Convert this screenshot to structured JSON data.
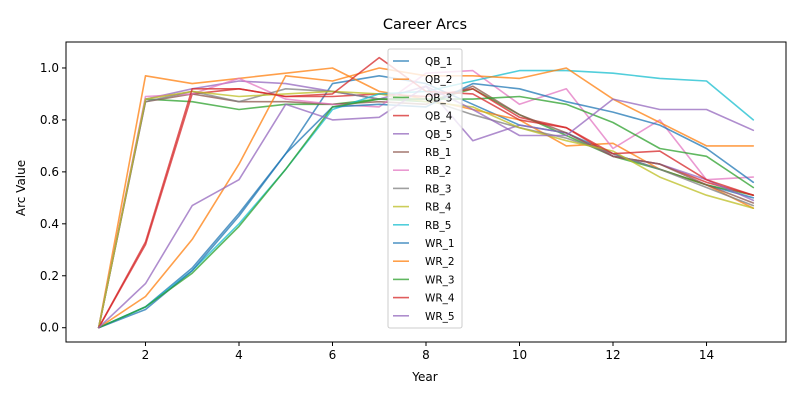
{
  "chart_data": {
    "type": "line",
    "title": "Career Arcs",
    "xlabel": "Year",
    "ylabel": "Arc Value",
    "xlim": [
      0.3,
      15.7
    ],
    "ylim": [
      -0.055,
      1.1
    ],
    "x_ticks": [
      2,
      4,
      6,
      8,
      10,
      12,
      14
    ],
    "y_ticks": [
      0.0,
      0.2,
      0.4,
      0.6,
      0.8,
      1.0
    ],
    "grid": false,
    "legend_position": "upper center",
    "x": [
      1,
      2,
      3,
      4,
      5,
      6,
      7,
      8,
      9,
      10,
      11,
      12,
      13,
      14,
      15
    ],
    "series": [
      {
        "name": "QB_1",
        "color": "#1f77b4",
        "values": [
          0.0,
          0.08,
          0.23,
          0.44,
          0.67,
          0.94,
          0.97,
          0.94,
          0.86,
          0.78,
          0.75,
          0.67,
          0.61,
          0.55,
          0.5
        ]
      },
      {
        "name": "QB_2",
        "color": "#ff7f0e",
        "values": [
          0.0,
          0.97,
          0.94,
          0.96,
          0.98,
          1.0,
          0.91,
          0.88,
          0.84,
          0.8,
          0.7,
          0.71,
          0.61,
          0.55,
          0.46
        ]
      },
      {
        "name": "QB_3",
        "color": "#2ca02c",
        "values": [
          0.0,
          0.88,
          0.87,
          0.84,
          0.86,
          0.86,
          0.88,
          0.87,
          0.92,
          0.82,
          0.74,
          0.66,
          0.61,
          0.55,
          0.51
        ]
      },
      {
        "name": "QB_4",
        "color": "#d62728",
        "values": [
          0.0,
          0.32,
          0.9,
          0.92,
          0.89,
          0.89,
          0.9,
          0.89,
          0.92,
          0.81,
          0.77,
          0.66,
          0.63,
          0.56,
          0.51
        ]
      },
      {
        "name": "QB_5",
        "color": "#9467bd",
        "values": [
          0.0,
          0.88,
          0.92,
          0.95,
          0.94,
          0.91,
          0.88,
          0.93,
          0.72,
          0.78,
          0.75,
          0.66,
          0.63,
          0.57,
          0.49
        ]
      },
      {
        "name": "RB_1",
        "color": "#8c564b",
        "values": [
          0.0,
          0.87,
          0.9,
          0.87,
          0.87,
          0.86,
          0.87,
          0.86,
          0.93,
          0.82,
          0.75,
          0.66,
          0.63,
          0.55,
          0.48
        ]
      },
      {
        "name": "RB_2",
        "color": "#e377c2",
        "values": [
          0.0,
          0.89,
          0.9,
          0.96,
          0.88,
          0.86,
          0.85,
          0.98,
          0.99,
          0.86,
          0.92,
          0.69,
          0.8,
          0.57,
          0.58
        ]
      },
      {
        "name": "RB_3",
        "color": "#7f7f7f",
        "values": [
          0.0,
          0.87,
          0.91,
          0.87,
          0.92,
          0.91,
          0.88,
          0.88,
          0.82,
          0.77,
          0.73,
          0.67,
          0.61,
          0.54,
          0.47
        ]
      },
      {
        "name": "RB_4",
        "color": "#bcbd22",
        "values": [
          0.0,
          0.88,
          0.91,
          0.89,
          0.9,
          0.91,
          0.9,
          0.87,
          0.85,
          0.77,
          0.72,
          0.68,
          0.58,
          0.51,
          0.46
        ]
      },
      {
        "name": "RB_5",
        "color": "#17becf",
        "values": [
          0.0,
          0.08,
          0.22,
          0.4,
          0.61,
          0.84,
          0.9,
          0.91,
          0.95,
          0.99,
          0.99,
          0.98,
          0.96,
          0.95,
          0.8
        ]
      },
      {
        "name": "WR_1",
        "color": "#1f77b4",
        "values": [
          0.0,
          0.07,
          0.22,
          0.43,
          0.67,
          0.85,
          0.86,
          0.85,
          0.94,
          0.92,
          0.87,
          0.83,
          0.78,
          0.69,
          0.56
        ]
      },
      {
        "name": "WR_2",
        "color": "#ff7f0e",
        "values": [
          0.0,
          0.12,
          0.34,
          0.63,
          0.97,
          0.95,
          1.0,
          0.97,
          0.97,
          0.96,
          1.0,
          0.88,
          0.79,
          0.7,
          0.7
        ]
      },
      {
        "name": "WR_3",
        "color": "#2ca02c",
        "values": [
          0.0,
          0.08,
          0.21,
          0.39,
          0.61,
          0.85,
          0.88,
          0.88,
          0.88,
          0.89,
          0.86,
          0.79,
          0.69,
          0.66,
          0.54
        ]
      },
      {
        "name": "WR_4",
        "color": "#d62728",
        "values": [
          0.0,
          0.33,
          0.92,
          0.92,
          0.89,
          0.9,
          1.04,
          0.91,
          0.9,
          0.8,
          0.77,
          0.67,
          0.68,
          0.57,
          0.51
        ]
      },
      {
        "name": "WR_5",
        "color": "#9467bd",
        "values": [
          0.0,
          0.17,
          0.47,
          0.57,
          0.86,
          0.8,
          0.81,
          0.93,
          0.84,
          0.74,
          0.74,
          0.88,
          0.84,
          0.84,
          0.76
        ]
      }
    ]
  }
}
